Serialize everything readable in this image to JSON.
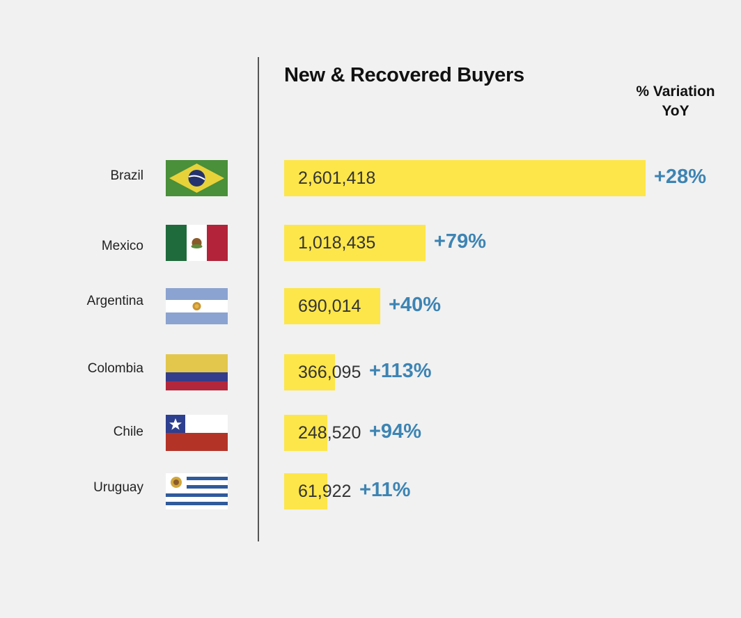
{
  "chart_data": {
    "type": "bar",
    "orientation": "horizontal",
    "title": "New & Recovered Buyers",
    "variation_header": [
      "% Variation",
      "YoY"
    ],
    "categories": [
      "Brazil",
      "Mexico",
      "Argentina",
      "Colombia",
      "Chile",
      "Uruguay"
    ],
    "values": [
      2601418,
      1018435,
      690014,
      366095,
      248520,
      61922
    ],
    "value_labels": [
      "2,601,418",
      "1,018,435",
      "690,014",
      "366,095",
      "248,520",
      "61,922"
    ],
    "variation_labels": [
      "+28%",
      "+79%",
      "+40%",
      "+113%",
      "+94%",
      "+11%"
    ],
    "flags": [
      "brazil-flag",
      "mexico-flag",
      "argentina-flag",
      "colombia-flag",
      "chile-flag",
      "uruguay-flag"
    ],
    "bar_color": "#fde64a",
    "variation_color": "#3d84b3",
    "grid": false
  }
}
